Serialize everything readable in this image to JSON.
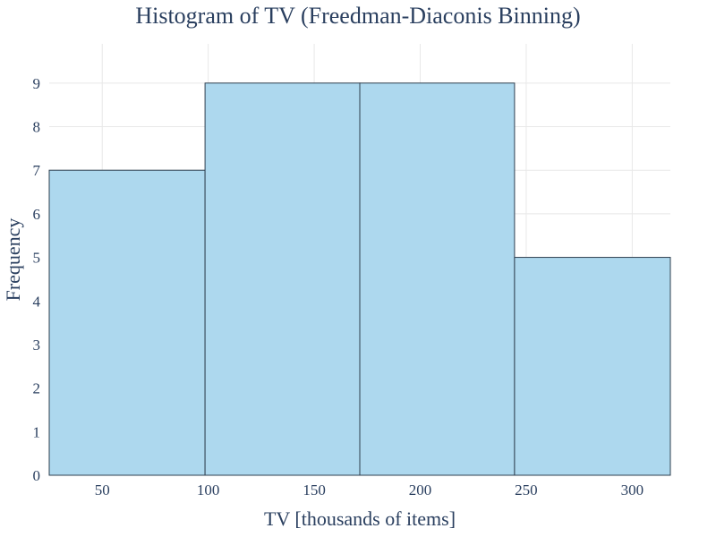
{
  "chart_data": {
    "type": "bar",
    "title": "Histogram of TV (Freedman-Diaconis Binning)",
    "xlabel": "TV [thousands of items]",
    "ylabel": "Frequency",
    "bins": [
      {
        "start": 25,
        "end": 98.5,
        "count": 7
      },
      {
        "start": 98.5,
        "end": 171.5,
        "count": 9
      },
      {
        "start": 171.5,
        "end": 244.5,
        "count": 9
      },
      {
        "start": 244.5,
        "end": 318,
        "count": 5
      }
    ],
    "x_range": [
      25,
      318
    ],
    "ylim": [
      0,
      9.9
    ],
    "x_ticks": [
      50,
      100,
      150,
      200,
      250,
      300
    ],
    "y_ticks": [
      0,
      1,
      2,
      3,
      4,
      5,
      6,
      7,
      8,
      9
    ],
    "grid": true,
    "colors": {
      "bar_fill": "#add8ee",
      "bar_outline": "#2f3f4f",
      "text": "#2a3f5f",
      "grid": "#e8e8e8"
    }
  }
}
